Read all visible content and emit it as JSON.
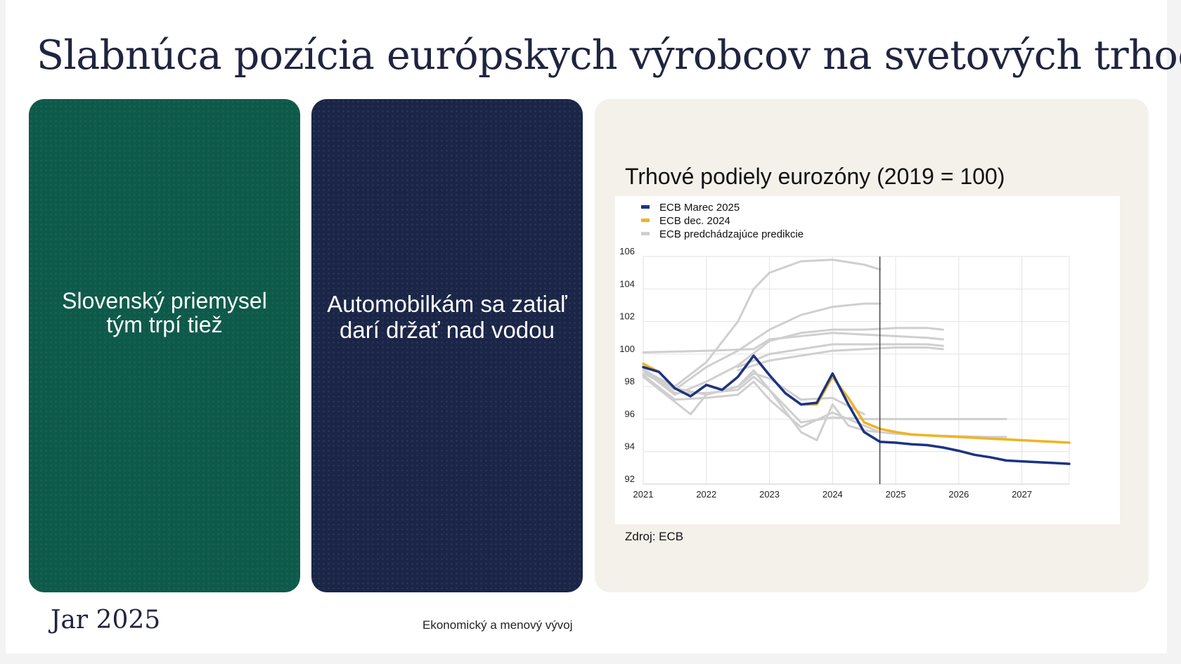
{
  "title": "Slabnúca pozícia európskych výrobcov na svetových trhoch",
  "panels": {
    "green_text": "Slovenský priemysel tým trpí tiež",
    "navy_text": "Automobilkám sa zatiaľ darí držať nad vodou"
  },
  "source": "Zdroj: ECB",
  "footer": {
    "date": "Jar 2025",
    "center": "Ekonomický a menový vývoj"
  },
  "colors": {
    "green_panel": "#0e5a4a",
    "navy_panel": "#1a2547",
    "ecb_march_2025": "#1b3384",
    "ecb_dec_2024": "#f0b323",
    "ecb_previous": "#cfcfcf"
  },
  "chart_data": {
    "type": "line",
    "title": "Trhové podiely eurozóny (2019 = 100)",
    "xlabel": "",
    "ylabel": "",
    "xlim": [
      2021,
      2027.75
    ],
    "ylim": [
      92,
      106
    ],
    "x_ticks": [
      "2021",
      "2022",
      "2023",
      "2024",
      "2025",
      "2026",
      "2027"
    ],
    "y_ticks": [
      "92",
      "94",
      "96",
      "98",
      "100",
      "102",
      "104",
      "106"
    ],
    "grid": true,
    "legend": "top-left",
    "vline_x": 2024.75,
    "series": [
      {
        "name": "ECB Marec 2025",
        "color": "#1b3384",
        "x": [
          2021,
          2021.25,
          2021.5,
          2021.75,
          2022,
          2022.25,
          2022.5,
          2022.75,
          2023,
          2023.25,
          2023.5,
          2023.75,
          2024,
          2024.25,
          2024.5,
          2024.75,
          2025,
          2025.25,
          2025.5,
          2025.75,
          2026,
          2026.25,
          2026.5,
          2026.75,
          2027,
          2027.25,
          2027.5,
          2027.75
        ],
        "y": [
          99.2,
          98.9,
          97.9,
          97.4,
          98.1,
          97.8,
          98.6,
          99.9,
          98.7,
          97.6,
          96.9,
          97.0,
          98.8,
          96.9,
          95.2,
          94.6,
          94.55,
          94.45,
          94.4,
          94.25,
          94.05,
          93.8,
          93.65,
          93.45,
          93.4,
          93.35,
          93.3,
          93.25
        ]
      },
      {
        "name": "ECB dec. 2024",
        "color": "#f0b323",
        "x": [
          2021,
          2021.25,
          2021.5,
          2021.75,
          2022,
          2022.25,
          2022.5,
          2022.75,
          2023,
          2023.25,
          2023.5,
          2023.75,
          2024,
          2024.25,
          2024.5,
          2024.75,
          2025,
          2025.25,
          2025.5,
          2025.75,
          2026,
          2026.25,
          2026.5,
          2026.75,
          2027,
          2027.25,
          2027.5,
          2027.75
        ],
        "y": [
          99.4,
          98.9,
          97.9,
          97.4,
          98.1,
          97.8,
          98.6,
          99.9,
          98.7,
          97.6,
          96.9,
          96.9,
          98.6,
          97.3,
          95.8,
          95.4,
          95.2,
          95.05,
          95.0,
          94.95,
          94.9,
          94.85,
          94.8,
          94.75,
          94.7,
          94.65,
          94.6,
          94.55
        ]
      }
    ],
    "previous_projections": {
      "name": "ECB predchádzajúce predikcie",
      "color": "#cfcfcf",
      "lines": [
        {
          "x": [
            2021,
            2021.5,
            2022,
            2022.5,
            2022.75,
            2023,
            2023.5,
            2024,
            2024.5,
            2024.75
          ],
          "y": [
            99.0,
            98.0,
            99.5,
            102.0,
            104.0,
            105.0,
            105.7,
            105.8,
            105.5,
            105.2
          ]
        },
        {
          "x": [
            2021,
            2021.5,
            2022,
            2022.5,
            2023,
            2023.5,
            2024,
            2024.5,
            2024.75
          ],
          "y": [
            99.1,
            97.8,
            99.2,
            100.2,
            101.5,
            102.4,
            102.9,
            103.1,
            103.1
          ]
        },
        {
          "x": [
            2021,
            2021.5,
            2022,
            2022.5,
            2023,
            2023.5,
            2024,
            2024.5,
            2025,
            2025.5,
            2025.75
          ],
          "y": [
            99.0,
            97.5,
            98.3,
            99.3,
            100.8,
            101.3,
            101.5,
            101.5,
            101.6,
            101.6,
            101.5
          ]
        },
        {
          "x": [
            2021,
            2022,
            2022.75,
            2023,
            2023.5,
            2024,
            2024.5,
            2025,
            2025.5,
            2025.75
          ],
          "y": [
            100.1,
            100.2,
            100.3,
            100.9,
            101.1,
            101.3,
            101.2,
            101.1,
            101.0,
            100.9
          ]
        },
        {
          "x": [
            2022.5,
            2023,
            2023.5,
            2024,
            2024.5,
            2025,
            2025.5,
            2025.75
          ],
          "y": [
            99.2,
            100.0,
            100.3,
            100.6,
            100.6,
            100.6,
            100.6,
            100.5
          ]
        },
        {
          "x": [
            2022.5,
            2023,
            2023.5,
            2024,
            2024.5,
            2025,
            2025.5,
            2025.75
          ],
          "y": [
            99.0,
            99.6,
            99.9,
            100.2,
            100.3,
            100.4,
            100.4,
            100.3
          ]
        },
        {
          "x": [
            2021,
            2021.5,
            2022,
            2022.5,
            2022.75,
            2023,
            2023.5,
            2023.75,
            2024,
            2024.25,
            2024.5,
            2025,
            2025.5,
            2026,
            2026.5,
            2026.75
          ],
          "y": [
            98.8,
            97.9,
            97.5,
            98.0,
            99.0,
            97.8,
            95.2,
            94.7,
            96.9,
            95.6,
            95.3,
            95.1,
            95.0,
            94.95,
            94.9,
            94.9
          ]
        },
        {
          "x": [
            2021,
            2021.5,
            2022,
            2022.5,
            2022.75,
            2023,
            2023.5,
            2024,
            2024.5,
            2025,
            2025.5,
            2026,
            2026.5,
            2026.75
          ],
          "y": [
            99.0,
            97.6,
            97.6,
            97.8,
            98.6,
            97.8,
            95.8,
            96.1,
            96.0,
            96.0,
            96.0,
            96.0,
            96.0,
            96.0
          ]
        },
        {
          "x": [
            2021,
            2021.5,
            2022,
            2022.5,
            2022.75,
            2023,
            2023.5,
            2024,
            2024.5,
            2024.75
          ],
          "y": [
            98.7,
            97.2,
            97.3,
            97.5,
            98.3,
            97.2,
            95.5,
            96.4,
            95.6,
            95.2
          ]
        },
        {
          "x": [
            2021,
            2021.75,
            2022,
            2022.5,
            2022.75,
            2023,
            2023.5,
            2024,
            2024.5
          ],
          "y": [
            98.6,
            96.3,
            97.5,
            98.0,
            98.8,
            98.5,
            97.2,
            97.3,
            96.3
          ]
        }
      ]
    }
  }
}
